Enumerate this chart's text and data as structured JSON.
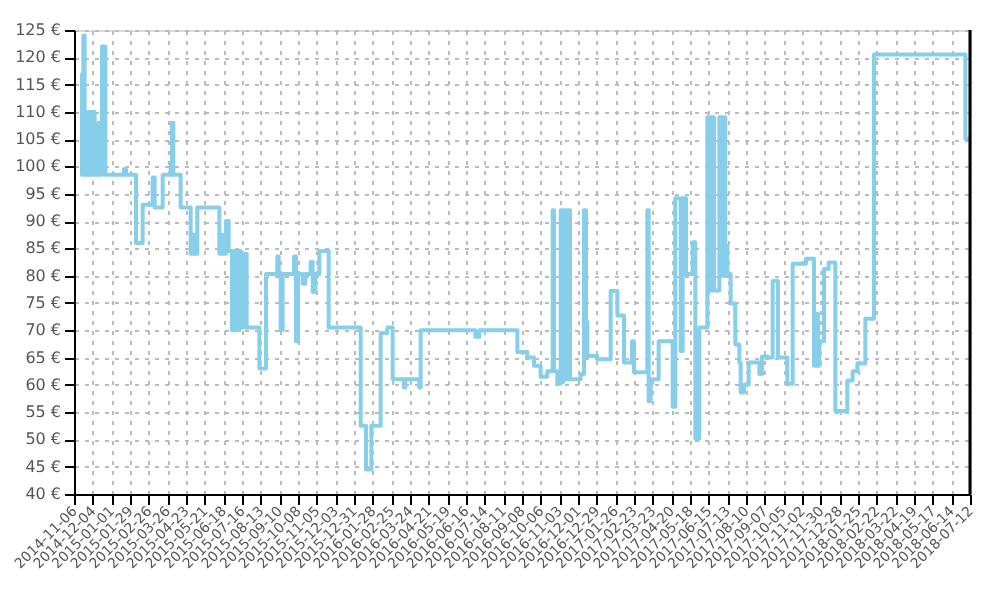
{
  "chart_data": {
    "type": "step",
    "line_style": "solid",
    "marker": "none",
    "grid": true,
    "ylim": [
      40,
      125
    ],
    "yticks": [
      {
        "value": 40,
        "label": "40 €"
      },
      {
        "value": 45,
        "label": "45 €"
      },
      {
        "value": 50,
        "label": "50 €"
      },
      {
        "value": 55,
        "label": "55 €"
      },
      {
        "value": 60,
        "label": "60 €"
      },
      {
        "value": 65,
        "label": "65 €"
      },
      {
        "value": 70,
        "label": "70 €"
      },
      {
        "value": 75,
        "label": "75 €"
      },
      {
        "value": 80,
        "label": "80 €"
      },
      {
        "value": 85,
        "label": "85 €"
      },
      {
        "value": 90,
        "label": "90 €"
      },
      {
        "value": 95,
        "label": "95 €"
      },
      {
        "value": 100,
        "label": "100 €"
      },
      {
        "value": 105,
        "label": "105 €"
      },
      {
        "value": 110,
        "label": "110 €"
      },
      {
        "value": 115,
        "label": "115 €"
      },
      {
        "value": 120,
        "label": "120 €"
      },
      {
        "value": 125,
        "label": "125 €"
      }
    ],
    "xlim": [
      "2014-11-06",
      "2018-07-12"
    ],
    "xticks": [
      "2014-11-06",
      "2014-12-04",
      "2015-01-01",
      "2015-01-29",
      "2015-02-26",
      "2015-03-26",
      "2015-04-23",
      "2015-05-21",
      "2015-06-18",
      "2015-07-16",
      "2015-08-13",
      "2015-09-10",
      "2015-10-08",
      "2015-11-05",
      "2015-12-03",
      "2015-12-31",
      "2016-01-28",
      "2016-02-25",
      "2016-03-24",
      "2016-04-21",
      "2016-05-19",
      "2016-06-16",
      "2016-07-14",
      "2016-08-11",
      "2016-09-08",
      "2016-10-06",
      "2016-11-03",
      "2016-12-01",
      "2016-12-29",
      "2017-01-26",
      "2017-02-23",
      "2017-03-23",
      "2017-04-20",
      "2017-05-18",
      "2017-06-15",
      "2017-07-13",
      "2017-08-10",
      "2017-09-07",
      "2017-10-05",
      "2017-11-02",
      "2017-11-30",
      "2017-12-28",
      "2018-01-25",
      "2018-02-22",
      "2018-03-22",
      "2018-04-19",
      "2018-05-17",
      "2018-06-14",
      "2018-07-12"
    ],
    "series": [
      {
        "color": "#87ceeb",
        "x": [
          "2014-11-16",
          "2014-11-18",
          "2014-11-20",
          "2014-11-22",
          "2014-11-24",
          "2014-11-26",
          "2014-11-28",
          "2014-12-02",
          "2014-12-04",
          "2014-12-07",
          "2014-12-13",
          "2014-12-16",
          "2014-12-18",
          "2014-12-23",
          "2015-01-20",
          "2015-01-23",
          "2015-02-07",
          "2015-02-17",
          "2015-03-04",
          "2015-03-07",
          "2015-03-19",
          "2015-03-31",
          "2015-04-02",
          "2015-04-04",
          "2015-04-15",
          "2015-04-30",
          "2015-05-03",
          "2015-05-07",
          "2015-05-10",
          "2015-06-12",
          "2015-06-16",
          "2015-06-20",
          "2015-06-22",
          "2015-06-26",
          "2015-07-01",
          "2015-07-04",
          "2015-07-08",
          "2015-07-12",
          "2015-07-14",
          "2015-07-20",
          "2015-07-23",
          "2015-08-11",
          "2015-08-21",
          "2015-09-07",
          "2015-09-09",
          "2015-09-12",
          "2015-09-15",
          "2015-10-02",
          "2015-10-05",
          "2015-10-08",
          "2015-10-15",
          "2015-10-19",
          "2015-10-27",
          "2015-10-30",
          "2015-11-03",
          "2015-11-09",
          "2015-11-23",
          "2016-01-10",
          "2016-01-18",
          "2016-01-26",
          "2016-02-09",
          "2016-02-19",
          "2016-02-27",
          "2016-03-15",
          "2016-03-17",
          "2016-04-07",
          "2016-04-09",
          "2016-06-30",
          "2016-07-06",
          "2016-09-01",
          "2016-09-16",
          "2016-09-26",
          "2016-10-06",
          "2016-10-16",
          "2016-10-24",
          "2016-10-26",
          "2016-10-31",
          "2016-11-05",
          "2016-11-07",
          "2016-11-09",
          "2016-11-11",
          "2016-11-13",
          "2016-11-15",
          "2016-11-17",
          "2016-11-19",
          "2016-12-05",
          "2016-12-10",
          "2016-12-13",
          "2016-12-15",
          "2016-12-30",
          "2017-01-19",
          "2017-01-29",
          "2017-02-08",
          "2017-02-20",
          "2017-02-23",
          "2017-03-15",
          "2017-03-17",
          "2017-03-20",
          "2017-04-01",
          "2017-04-22",
          "2017-04-26",
          "2017-05-04",
          "2017-05-07",
          "2017-05-12",
          "2017-05-22",
          "2017-05-26",
          "2017-06-01",
          "2017-06-13",
          "2017-06-16",
          "2017-06-19",
          "2017-06-23",
          "2017-07-01",
          "2017-07-04",
          "2017-07-08",
          "2017-07-10",
          "2017-07-13",
          "2017-07-18",
          "2017-07-25",
          "2017-07-31",
          "2017-08-02",
          "2017-08-07",
          "2017-08-14",
          "2017-08-30",
          "2017-09-03",
          "2017-09-11",
          "2017-09-19",
          "2017-09-27",
          "2017-10-11",
          "2017-10-19",
          "2017-11-08",
          "2017-11-20",
          "2017-11-23",
          "2017-11-26",
          "2017-11-28",
          "2017-12-05",
          "2017-12-12",
          "2017-12-22",
          "2018-01-09",
          "2018-01-17",
          "2018-01-24",
          "2018-02-05",
          "2018-02-18",
          "2018-07-05",
          "2018-07-12"
        ],
        "values": [
          117,
          98.5,
          124,
          98.5,
          110,
          98.5,
          110,
          98.5,
          110,
          98.5,
          108,
          98.5,
          122,
          98.5,
          99.5,
          98.5,
          86,
          93,
          98,
          92.5,
          98.5,
          100,
          108,
          98.5,
          92.5,
          84,
          87.5,
          84,
          92.5,
          84,
          87.5,
          84,
          90,
          84.5,
          70,
          84.5,
          70,
          84.5,
          70.5,
          84,
          70.5,
          63,
          80.3,
          83.5,
          80.3,
          70,
          80.3,
          83.5,
          68,
          80.3,
          78.5,
          80.3,
          82.5,
          77,
          80.3,
          84.5,
          70.5,
          52.5,
          44.5,
          52.5,
          69.5,
          70.5,
          61,
          59.5,
          61,
          59.5,
          70,
          68.8,
          70,
          66,
          65,
          63.5,
          61.5,
          62.5,
          92,
          62.5,
          60.2,
          92,
          60.5,
          92,
          61,
          92,
          61,
          92,
          61,
          62,
          92,
          71.5,
          65.3,
          64.7,
          77.2,
          72.7,
          64.1,
          68,
          62.3,
          92,
          57,
          61,
          68,
          56,
          94.2,
          66.2,
          94.2,
          80.3,
          86.1,
          50.1,
          70.5,
          109,
          77.3,
          109,
          77.3,
          109,
          80,
          109,
          85.5,
          80.3,
          74.9,
          67.4,
          64,
          58.6,
          60,
          64.1,
          62,
          65.2,
          65,
          79,
          65,
          60.2,
          82.2,
          83.1,
          63.5,
          73,
          63.5,
          68,
          81.2,
          82.4,
          55.2,
          60.8,
          62.5,
          63.9,
          72.1,
          120.5,
          105.1,
          105.1
        ]
      }
    ]
  }
}
